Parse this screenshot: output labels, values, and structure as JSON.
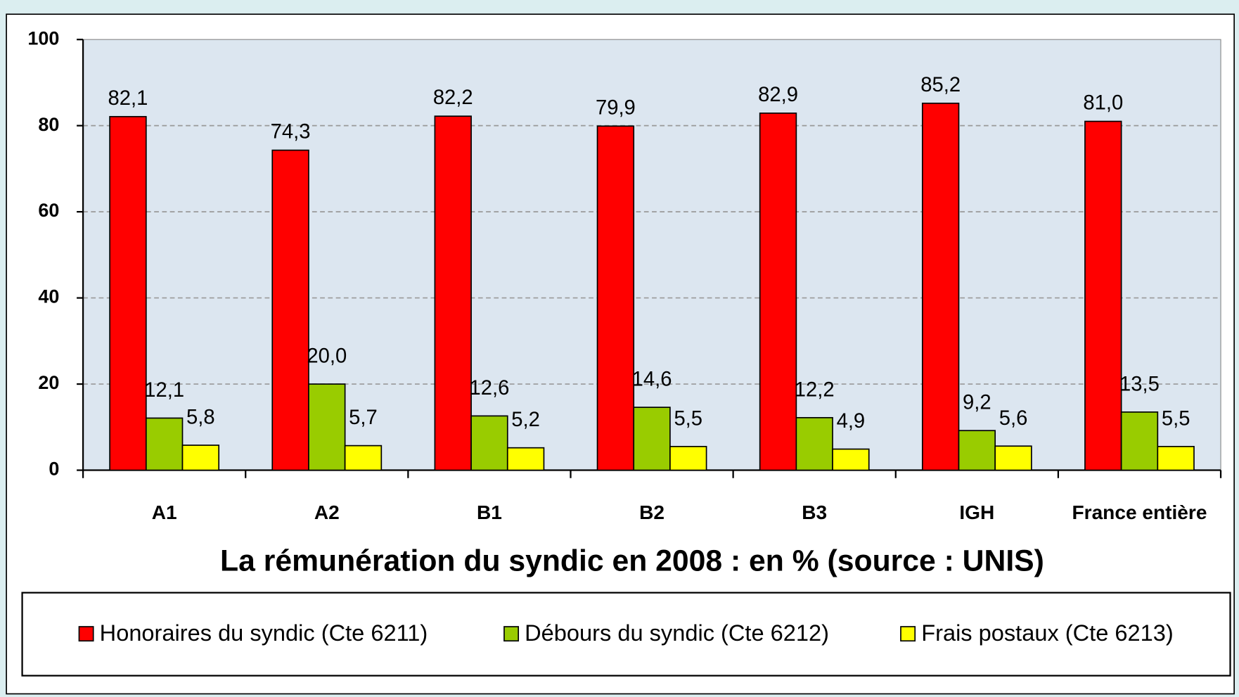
{
  "chart_data": {
    "type": "bar",
    "title": "La rémunération du syndic en 2008 : en % (source : UNIS)",
    "categories": [
      "A1",
      "A2",
      "B1",
      "B2",
      "B3",
      "IGH",
      "France entière"
    ],
    "series": [
      {
        "name": "Honoraires du syndic (Cte 6211)",
        "color": "#ff0000",
        "values": [
          82.1,
          74.3,
          82.2,
          79.9,
          82.9,
          85.2,
          81.0
        ],
        "value_labels": [
          "82,1",
          "74,3",
          "82,2",
          "79,9",
          "82,9",
          "85,2",
          "81,0"
        ]
      },
      {
        "name": "Débours du syndic (Cte 6212)",
        "color": "#99cc00",
        "values": [
          12.1,
          20.0,
          12.6,
          14.6,
          12.2,
          9.2,
          13.5
        ],
        "value_labels": [
          "12,1",
          "20,0",
          "12,6",
          "14,6",
          "12,2",
          "9,2",
          "13,5"
        ]
      },
      {
        "name": "Frais postaux (Cte 6213)",
        "color": "#ffff00",
        "values": [
          5.8,
          5.7,
          5.2,
          5.5,
          4.9,
          5.6,
          5.5
        ],
        "value_labels": [
          "5,8",
          "5,7",
          "5,2",
          "5,5",
          "4,9",
          "5,6",
          "5,5"
        ]
      }
    ],
    "ylim": [
      0,
      100
    ],
    "yticks": [
      0,
      20,
      40,
      60,
      80,
      100
    ],
    "grid": true,
    "legend": "bottom"
  }
}
